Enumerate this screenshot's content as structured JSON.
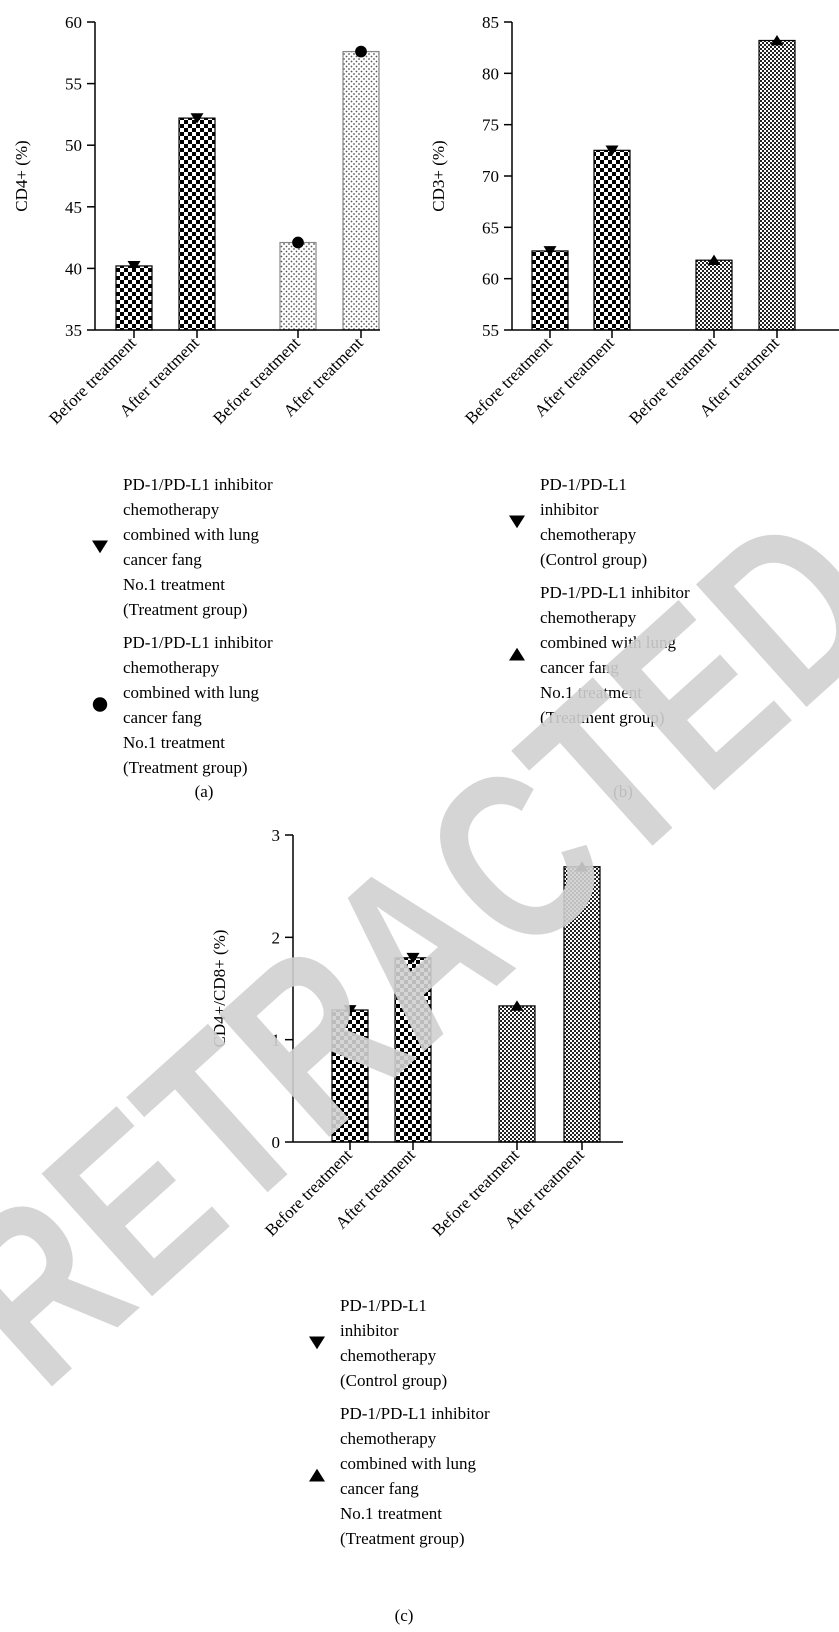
{
  "chart_data": [
    {
      "type": "bar",
      "panel_label": "(a)",
      "ylabel": "CD4+ (%)",
      "ylim": [
        35,
        60
      ],
      "yticks": [
        35,
        40,
        45,
        50,
        55,
        60
      ],
      "categories": [
        "Before treatment",
        "After treatment",
        "Before treatment",
        "After treatment"
      ],
      "values": [
        40.2,
        52.2,
        42.1,
        57.6
      ],
      "bar_patterns": [
        "checker",
        "checker",
        "dots",
        "dots"
      ],
      "markers": [
        "triangle-down",
        "triangle-down",
        "circle",
        "circle"
      ],
      "legend": [
        {
          "marker": "triangle-down",
          "lines": [
            "PD-1/PD-L1 inhibitor",
            "chemotherapy",
            "combined with lung",
            "cancer fang",
            "No.1 treatment",
            "(Treatment group)"
          ]
        },
        {
          "marker": "circle",
          "lines": [
            "PD-1/PD-L1 inhibitor",
            "chemotherapy",
            "combined with lung",
            "cancer fang",
            "No.1 treatment",
            "(Treatment group)"
          ]
        }
      ]
    },
    {
      "type": "bar",
      "panel_label": "(b)",
      "ylabel": "CD3+ (%)",
      "ylim": [
        55,
        85
      ],
      "yticks": [
        55,
        60,
        65,
        70,
        75,
        80,
        85
      ],
      "categories": [
        "Before treatment",
        "After treatment",
        "Before treatment",
        "After treatment"
      ],
      "values": [
        62.7,
        72.5,
        61.8,
        83.2
      ],
      "bar_patterns": [
        "checker",
        "checker",
        "finechecker",
        "finechecker"
      ],
      "markers": [
        "triangle-down",
        "triangle-down",
        "triangle-up",
        "triangle-up"
      ],
      "legend": [
        {
          "marker": "triangle-down",
          "lines": [
            "PD-1/PD-L1",
            "inhibitor",
            "chemotherapy",
            "(Control group)"
          ]
        },
        {
          "marker": "triangle-up",
          "lines": [
            "PD-1/PD-L1 inhibitor",
            "chemotherapy",
            "combined with lung",
            "cancer fang",
            "No.1 treatment",
            "(Treatment group)"
          ]
        }
      ]
    },
    {
      "type": "bar",
      "panel_label": "(c)",
      "ylabel": "CD4+/CD8+ (%)",
      "ylim": [
        0,
        3
      ],
      "yticks": [
        0,
        1,
        2,
        3
      ],
      "categories": [
        "Before treatment",
        "After treatment",
        "Before treatment",
        "After treatment"
      ],
      "values": [
        1.29,
        1.8,
        1.33,
        2.69
      ],
      "bar_patterns": [
        "checker",
        "checker",
        "finechecker",
        "finechecker"
      ],
      "markers": [
        "triangle-down",
        "triangle-down",
        "triangle-up",
        "triangle-up"
      ],
      "legend": [
        {
          "marker": "triangle-down",
          "lines": [
            "PD-1/PD-L1",
            "inhibitor",
            "chemotherapy",
            "(Control group)"
          ]
        },
        {
          "marker": "triangle-up",
          "lines": [
            "PD-1/PD-L1 inhibitor",
            "chemotherapy",
            "combined with lung",
            "cancer fang",
            "No.1 treatment",
            "(Treatment group)"
          ]
        }
      ]
    }
  ],
  "watermark": {
    "text": "RETRACTED",
    "color": "#d0d0d0"
  }
}
